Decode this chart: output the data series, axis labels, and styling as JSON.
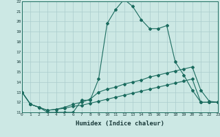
{
  "xlabel": "Humidex (Indice chaleur)",
  "background_color": "#cce8e4",
  "grid_color": "#aacccc",
  "line_color": "#1a6b5e",
  "xmin": 0,
  "xmax": 23,
  "ymin": 11,
  "ymax": 22,
  "series": [
    {
      "x": [
        0,
        1,
        2,
        3,
        4,
        5,
        6,
        7,
        8,
        9,
        10,
        11,
        12,
        13,
        14,
        15,
        16,
        17,
        18,
        19,
        20,
        21,
        22,
        23
      ],
      "y": [
        13,
        11.8,
        11.5,
        11.0,
        11.0,
        11.0,
        11.0,
        12.2,
        12.2,
        14.3,
        19.8,
        21.2,
        22.2,
        21.5,
        20.2,
        19.3,
        19.3,
        19.6,
        16.0,
        14.7,
        13.2,
        12.0,
        12.0,
        12.0
      ]
    },
    {
      "x": [
        0,
        1,
        2,
        3,
        4,
        5,
        6,
        7,
        8,
        9,
        10,
        11,
        12,
        13,
        14,
        15,
        16,
        17,
        18,
        19,
        20,
        21,
        22,
        23
      ],
      "y": [
        13,
        11.8,
        11.5,
        11.2,
        11.3,
        11.5,
        11.8,
        12.0,
        12.3,
        13.0,
        13.3,
        13.5,
        13.8,
        14.0,
        14.2,
        14.5,
        14.7,
        14.9,
        15.1,
        15.3,
        15.5,
        13.2,
        12.1,
        12.0
      ]
    },
    {
      "x": [
        0,
        1,
        2,
        3,
        4,
        5,
        6,
        7,
        8,
        9,
        10,
        11,
        12,
        13,
        14,
        15,
        16,
        17,
        18,
        19,
        20,
        21,
        22,
        23
      ],
      "y": [
        13,
        11.8,
        11.5,
        11.2,
        11.3,
        11.4,
        11.6,
        11.7,
        11.9,
        12.1,
        12.3,
        12.5,
        12.7,
        12.9,
        13.1,
        13.3,
        13.5,
        13.7,
        13.9,
        14.1,
        14.3,
        12.0,
        12.0,
        12.0
      ]
    }
  ]
}
